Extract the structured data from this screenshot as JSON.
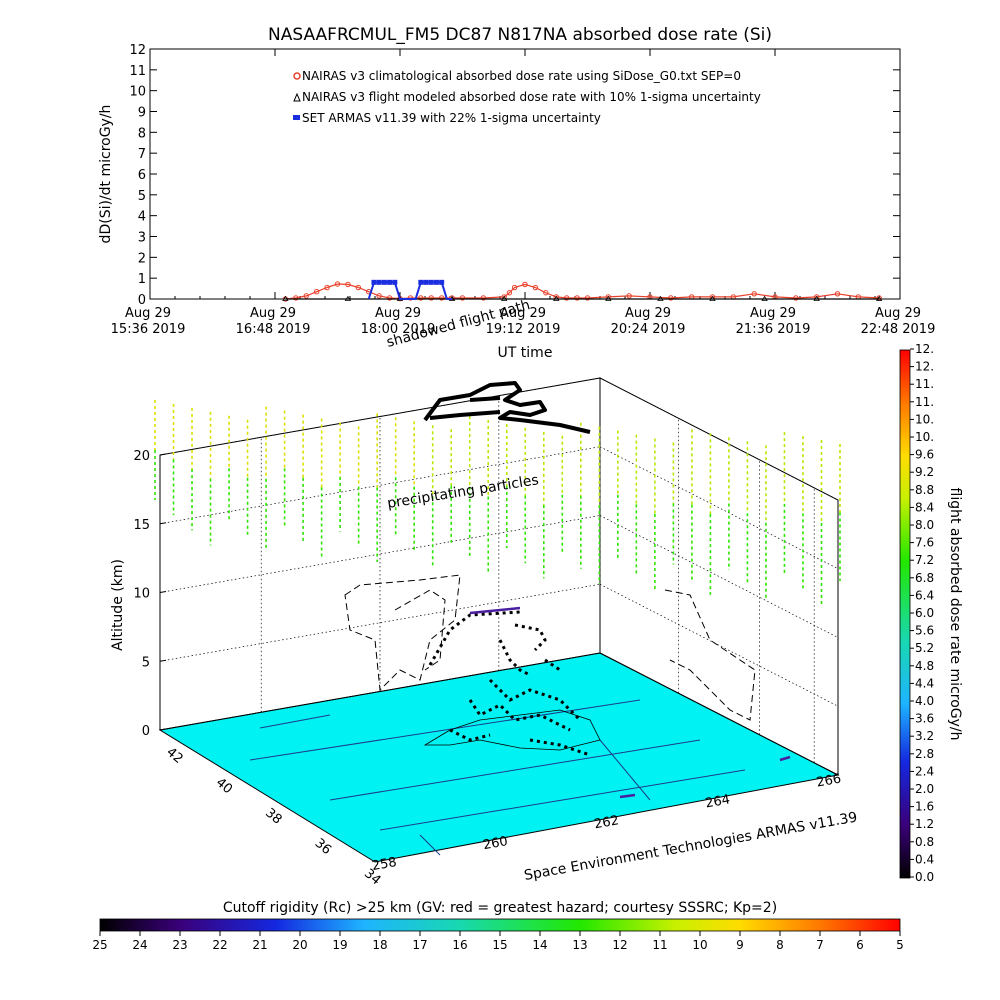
{
  "header": {
    "title": "NASAAFRCMUL_FM5 DC87 N817NA absorbed dose rate (Si)"
  },
  "chart_data": [
    {
      "type": "line",
      "title": "NASAAFRCMUL_FM5 DC87 N817NA absorbed dose rate (Si)",
      "xlabel": "UT time",
      "ylabel": "dD(Si)/dt microGy/h",
      "ylim": [
        0,
        12
      ],
      "yticks": [
        "0",
        "1",
        "2",
        "3",
        "4",
        "5",
        "6",
        "7",
        "8",
        "9",
        "10",
        "11",
        "12"
      ],
      "xticks": [
        {
          "date": "Aug 29",
          "time": "15:36 2019"
        },
        {
          "date": "Aug 29",
          "time": "16:48 2019"
        },
        {
          "date": "Aug 29",
          "time": "18:00 2019"
        },
        {
          "date": "Aug 29",
          "time": "19:12 2019"
        },
        {
          "date": "Aug 29",
          "time": "20:24 2019"
        },
        {
          "date": "Aug 29",
          "time": "21:36 2019"
        },
        {
          "date": "Aug 29",
          "time": "22:48 2019"
        }
      ],
      "legend": [
        {
          "name": "NAIRAS v3 climatological absorbed dose rate using SiDose_G0.txt SEP=0",
          "color": "#e8402a",
          "marker": "diamond"
        },
        {
          "name": "NAIRAS v3 flight modeled absorbed dose rate with 10% 1-sigma uncertainty",
          "color": "#000000",
          "marker": "triangle"
        },
        {
          "name": "SET ARMAS v11.39 with 22% 1-sigma uncertainty",
          "color": "#1a2ee0",
          "marker": "square"
        }
      ],
      "series": [
        {
          "name": "NAIRAS v3 climatological absorbed dose rate using SiDose_G0.txt SEP=0",
          "x": [
            16.9,
            17.0,
            17.1,
            17.2,
            17.3,
            17.4,
            17.5,
            17.6,
            17.7,
            17.8,
            17.9,
            18.0,
            18.1,
            18.2,
            18.3,
            18.4,
            18.5,
            18.6,
            18.8,
            19.0,
            19.05,
            19.1,
            19.2,
            19.3,
            19.4,
            19.5,
            19.6,
            19.7,
            19.8,
            20.0,
            20.2,
            20.4,
            20.6,
            20.8,
            21.0,
            21.2,
            21.4,
            21.6,
            21.8,
            22.0,
            22.2,
            22.4,
            22.6
          ],
          "y": [
            0.0,
            0.05,
            0.15,
            0.35,
            0.55,
            0.72,
            0.7,
            0.55,
            0.35,
            0.15,
            0.05,
            0.02,
            0.05,
            0.05,
            0.05,
            0.05,
            0.05,
            0.05,
            0.05,
            0.1,
            0.3,
            0.55,
            0.7,
            0.55,
            0.3,
            0.1,
            0.05,
            0.05,
            0.05,
            0.1,
            0.15,
            0.1,
            0.05,
            0.1,
            0.1,
            0.1,
            0.25,
            0.1,
            0.05,
            0.1,
            0.25,
            0.1,
            0.05
          ]
        },
        {
          "name": "NAIRAS v3 flight modeled absorbed dose rate with 10% 1-sigma uncertainty",
          "x": [
            16.9,
            17.5,
            18.0,
            18.5,
            19.0,
            19.5,
            20.0,
            20.5,
            21.0,
            21.5,
            22.0,
            22.6
          ],
          "y": [
            0,
            0,
            0,
            0,
            0,
            0,
            0,
            0,
            0,
            0,
            0,
            0
          ]
        },
        {
          "name": "SET ARMAS v11.39 with 22% 1-sigma uncertainty",
          "x": [
            17.7,
            17.75,
            17.8,
            17.85,
            17.9,
            17.95,
            18.0,
            18.05,
            18.1,
            18.15,
            18.2,
            18.25,
            18.3,
            18.35,
            18.4,
            18.45,
            18.5
          ],
          "y": [
            0.0,
            0.8,
            0.8,
            0.8,
            0.8,
            0.8,
            0.0,
            0.0,
            0.0,
            0.0,
            0.8,
            0.8,
            0.8,
            0.8,
            0.8,
            0.0,
            0.0
          ]
        }
      ]
    },
    {
      "type": "scatter",
      "ylabel": "Altitude (km)",
      "zticks": [
        "0",
        "5",
        "10",
        "15",
        "20"
      ],
      "lat_ticks": [
        "42",
        "40",
        "38",
        "36",
        "34"
      ],
      "lon_ticks": [
        "258",
        "260",
        "262",
        "264",
        "266"
      ],
      "annotations": [
        "shadowed flight path",
        "precipitating particles"
      ],
      "credit": "Space Environment Technologies ARMAS v11.39",
      "colorbar_label": "flight absorbed dose rate microGy/h",
      "colorbar_ticks": [
        "0.0",
        "0.4",
        "0.8",
        "1.2",
        "1.6",
        "2.0",
        "2.4",
        "2.8",
        "3.2",
        "3.6",
        "4.0",
        "4.4",
        "4.8",
        "5.2",
        "5.6",
        "6.0",
        "6.4",
        "6.8",
        "7.2",
        "7.6",
        "8.0",
        "8.4",
        "8.8",
        "9.2",
        "9.6",
        "10.",
        "10.",
        "11.",
        "11.",
        "12.",
        "12."
      ],
      "floor_color": "#00f2f2"
    },
    {
      "type": "heatmap",
      "title": "Cutoff rigidity (Rc) >25 km (GV: red = greatest hazard; courtesy SSSRC; Kp=2)",
      "ticks": [
        "25",
        "24",
        "23",
        "22",
        "21",
        "20",
        "19",
        "18",
        "17",
        "16",
        "15",
        "14",
        "13",
        "12",
        "11",
        "10",
        "9",
        "8",
        "7",
        "6",
        "5"
      ]
    }
  ]
}
